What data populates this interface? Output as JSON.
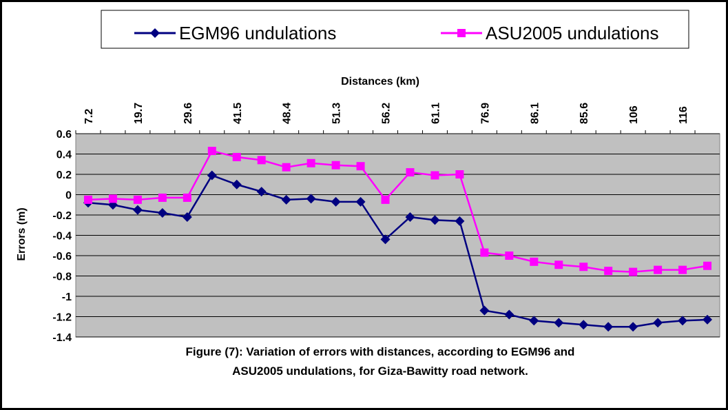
{
  "chart_data": {
    "type": "line",
    "x_label": "Distances (km)",
    "y_label": "Errors (m)",
    "caption": [
      "Figure (7): Variation of errors with distances, according to EGM96 and",
      "ASU2005 undulations, for Giza-Bawitty road network."
    ],
    "categories": [
      "7.2",
      null,
      "19.7",
      null,
      "29.6",
      null,
      "41.5",
      null,
      "48.4",
      null,
      "51.3",
      null,
      "56.2",
      null,
      "61.1",
      null,
      "76.9",
      null,
      "86.1",
      null,
      "85.6",
      null,
      "106",
      null,
      "116",
      null
    ],
    "series": [
      {
        "name": "EGM96 undulations",
        "color": "#000080",
        "marker": "diamond",
        "values": [
          -0.08,
          -0.1,
          -0.15,
          -0.18,
          -0.22,
          0.19,
          0.1,
          0.03,
          -0.05,
          -0.04,
          -0.07,
          -0.07,
          -0.44,
          -0.22,
          -0.25,
          -0.26,
          -1.14,
          -1.18,
          -1.24,
          -1.26,
          -1.28,
          -1.3,
          -1.3,
          -1.26,
          -1.24,
          -1.23
        ]
      },
      {
        "name": "ASU2005 undulations",
        "color": "#ff00ff",
        "marker": "square",
        "values": [
          -0.05,
          -0.04,
          -0.05,
          -0.03,
          -0.03,
          0.43,
          0.37,
          0.34,
          0.27,
          0.31,
          0.29,
          0.28,
          -0.05,
          0.22,
          0.19,
          0.2,
          -0.57,
          -0.6,
          -0.66,
          -0.69,
          -0.71,
          -0.75,
          -0.76,
          -0.74,
          -0.74,
          -0.7
        ]
      }
    ],
    "ylim": [
      -1.4,
      0.6
    ],
    "yticks": [
      0.6,
      0.4,
      0.2,
      0,
      -0.2,
      -0.4,
      -0.6,
      -0.8,
      -1,
      -1.2,
      -1.4
    ],
    "grid": true,
    "legend": "top",
    "plot_background": "#c0c0c0"
  }
}
